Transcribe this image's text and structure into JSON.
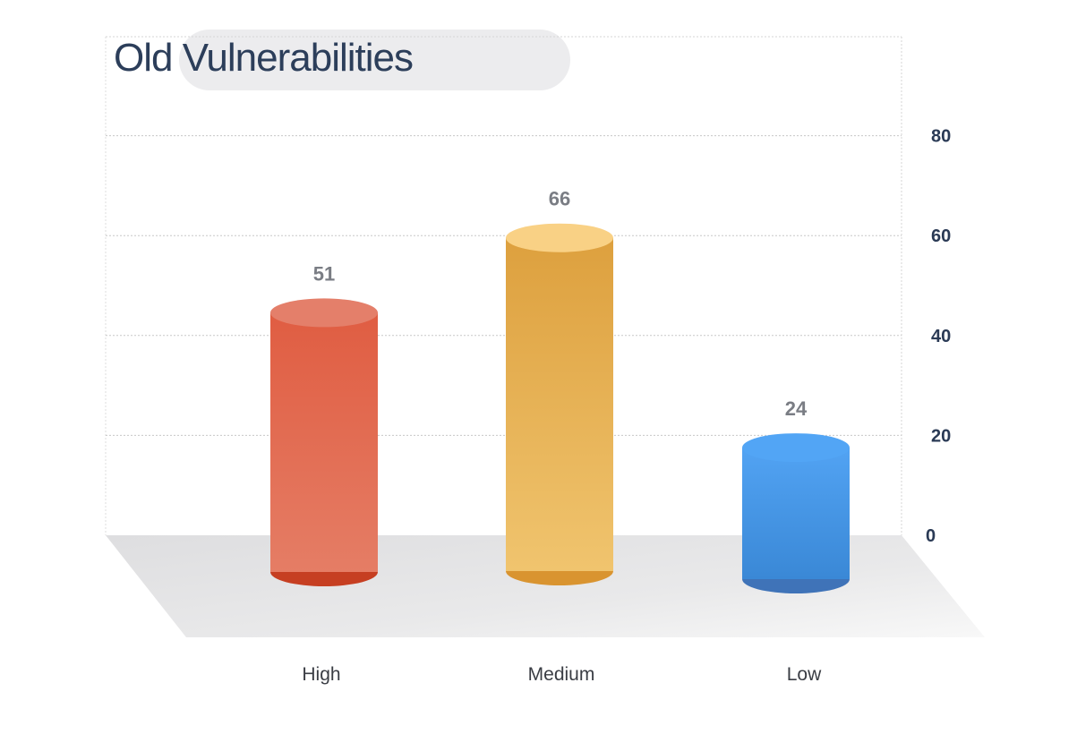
{
  "chart_data": {
    "type": "bar",
    "title": "Old Vulnerabilities",
    "categories": [
      "High",
      "Medium",
      "Low"
    ],
    "values": [
      51,
      66,
      24
    ],
    "value_labels": [
      "51",
      "66",
      "24"
    ],
    "ylim": [
      0,
      100
    ],
    "y_ticks": [
      0,
      20,
      40,
      60,
      80
    ],
    "y_tick_labels": [
      "0",
      "20",
      "40",
      "60",
      "80"
    ],
    "y_axis_side": "right",
    "grid": true,
    "style": "3d-cylinder",
    "colors": {
      "High": {
        "top": "#e47f6a",
        "body_top": "#e05d42",
        "body_bottom": "#e57d65",
        "base": "#c63f22"
      },
      "Medium": {
        "top": "#f9d185",
        "body_top": "#dda03e",
        "body_bottom": "#f0c46e",
        "base": "#d99430"
      },
      "Low": {
        "top": "#52a5f5",
        "body_top": "#52a3f3",
        "body_bottom": "#3a88d6",
        "base": "#3f73b8"
      }
    }
  }
}
